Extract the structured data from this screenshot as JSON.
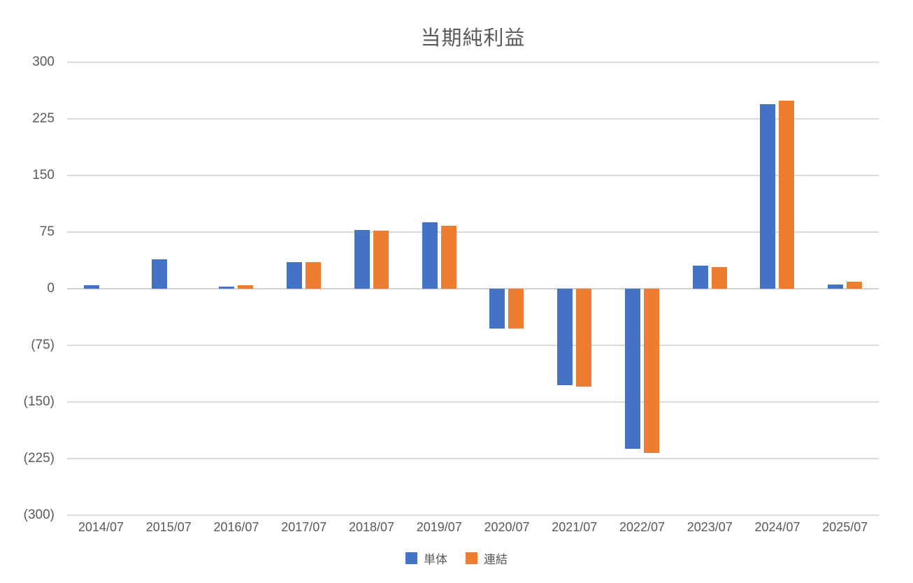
{
  "chart_data": {
    "type": "bar",
    "title": "当期純利益",
    "categories": [
      "2014/07",
      "2015/07",
      "2016/07",
      "2017/07",
      "2018/07",
      "2019/07",
      "2020/07",
      "2021/07",
      "2022/07",
      "2023/07",
      "2024/07",
      "2025/07"
    ],
    "series": [
      {
        "name": "単体",
        "color": "#4472C4",
        "values": [
          5,
          39,
          3,
          35,
          78,
          88,
          -53,
          -128,
          -212,
          31,
          244,
          6
        ]
      },
      {
        "name": "連結",
        "color": "#ED7D31",
        "values": [
          0,
          0,
          5,
          35,
          77,
          83,
          -53,
          -130,
          -218,
          29,
          249,
          9
        ]
      }
    ],
    "ylim": [
      -300,
      300
    ],
    "yticks": [
      300,
      225,
      150,
      75,
      0,
      -75,
      -150,
      -225,
      -300
    ],
    "ytick_labels": [
      "300",
      "225",
      "150",
      "75",
      "0",
      "(75)",
      "(150)",
      "(225)",
      "(300)"
    ],
    "xlabel": "",
    "ylabel": "",
    "grid": true,
    "legend_position": "bottom",
    "colors": {
      "gridline": "#d9d9d9",
      "text": "#595959",
      "background": "#ffffff"
    }
  }
}
